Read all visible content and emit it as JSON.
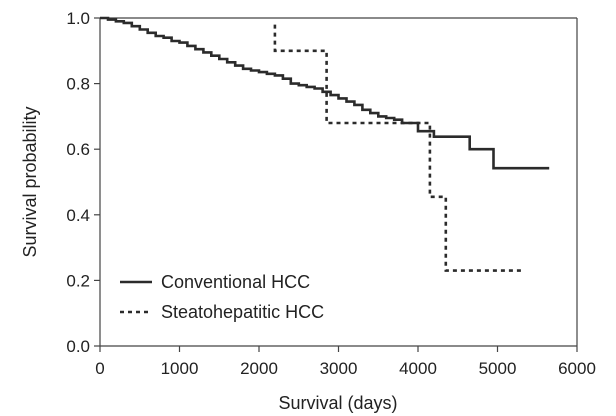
{
  "chart_data": {
    "type": "line",
    "step": true,
    "xlabel": "Survival (days)",
    "ylabel": "Survival probability",
    "xlim": [
      0,
      6000
    ],
    "ylim": [
      0.0,
      1.0
    ],
    "x_ticks": [
      0,
      1000,
      2000,
      3000,
      4000,
      5000,
      6000
    ],
    "y_ticks": [
      "0.0",
      "0.2",
      "0.4",
      "0.6",
      "0.8",
      "1.0"
    ],
    "grid": false,
    "legend_position": "bottom-left",
    "series": [
      {
        "name": "Conventional HCC",
        "style": "solid",
        "x": [
          0,
          100,
          200,
          300,
          400,
          500,
          600,
          700,
          800,
          900,
          1000,
          1100,
          1200,
          1300,
          1400,
          1500,
          1600,
          1700,
          1800,
          1900,
          2000,
          2100,
          2200,
          2300,
          2400,
          2500,
          2600,
          2700,
          2800,
          2900,
          3000,
          3100,
          3200,
          3300,
          3400,
          3500,
          3600,
          3700,
          3800,
          4000,
          4200,
          4400,
          4650,
          4950,
          5650
        ],
        "y": [
          1.0,
          0.995,
          0.99,
          0.985,
          0.975,
          0.965,
          0.955,
          0.945,
          0.94,
          0.93,
          0.925,
          0.915,
          0.905,
          0.895,
          0.885,
          0.875,
          0.865,
          0.855,
          0.845,
          0.84,
          0.835,
          0.83,
          0.825,
          0.815,
          0.8,
          0.795,
          0.79,
          0.785,
          0.775,
          0.765,
          0.755,
          0.745,
          0.735,
          0.72,
          0.71,
          0.7,
          0.695,
          0.69,
          0.68,
          0.655,
          0.638,
          0.638,
          0.6,
          0.542,
          0.542
        ]
      },
      {
        "name": "Steatohepatitic HCC",
        "style": "dashed",
        "x": [
          2200,
          2200,
          2850,
          2850,
          4150,
          4150,
          4350,
          4350,
          5300
        ],
        "y": [
          0.98,
          0.9,
          0.9,
          0.68,
          0.68,
          0.455,
          0.455,
          0.23,
          0.23
        ]
      }
    ]
  }
}
